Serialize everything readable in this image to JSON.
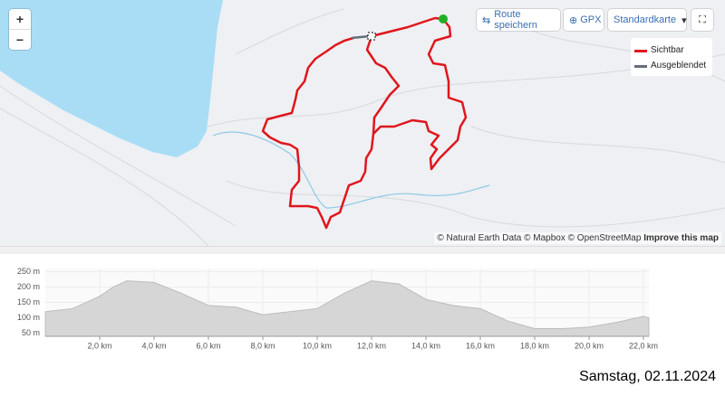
{
  "map": {
    "zoom_in": "+",
    "zoom_out": "−",
    "save_route": "Route speichern",
    "gpx": "GPX",
    "map_style": "Standardkarte",
    "legend": [
      "Sichtbar",
      "Ausgeblendet"
    ],
    "attribution": "© Natural Earth Data © Mapbox © OpenStreetMap",
    "improve": "Improve this map"
  },
  "elevation_profile": {
    "type": "area",
    "x": [
      0,
      1,
      2,
      2.5,
      3,
      4,
      5,
      6,
      7,
      8,
      9,
      10,
      11,
      12,
      13,
      14,
      15,
      16,
      17,
      18,
      19,
      20,
      21,
      22,
      22.2
    ],
    "values": [
      120,
      130,
      170,
      200,
      220,
      215,
      180,
      140,
      135,
      110,
      120,
      130,
      180,
      220,
      210,
      160,
      140,
      130,
      90,
      65,
      65,
      70,
      85,
      105,
      100
    ],
    "xlim": [
      0,
      22.2
    ],
    "ylim": [
      40,
      260
    ],
    "xticks": [
      {
        "value": 2,
        "label": "2,0 km"
      },
      {
        "value": 4,
        "label": "4,0 km"
      },
      {
        "value": 6,
        "label": "6,0 km"
      },
      {
        "value": 8,
        "label": "8,0 km"
      },
      {
        "value": 10,
        "label": "10,0 km"
      },
      {
        "value": 12,
        "label": "12,0 km"
      },
      {
        "value": 14,
        "label": "14,0 km"
      },
      {
        "value": 16,
        "label": "16,0 km"
      },
      {
        "value": 18,
        "label": "18,0 km"
      },
      {
        "value": 20,
        "label": "20,0 km"
      },
      {
        "value": 22,
        "label": "22,0 km"
      }
    ],
    "yticks": [
      {
        "value": 50,
        "label": "50 m"
      },
      {
        "value": 100,
        "label": "100 m"
      },
      {
        "value": 150,
        "label": "150 m"
      },
      {
        "value": 200,
        "label": "200 m"
      },
      {
        "value": 250,
        "label": "250 m"
      }
    ]
  },
  "date": "Samstag, 02.11.2024"
}
